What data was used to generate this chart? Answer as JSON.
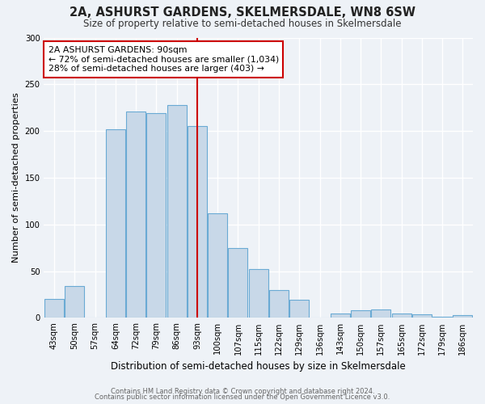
{
  "title": "2A, ASHURST GARDENS, SKELMERSDALE, WN8 6SW",
  "subtitle": "Size of property relative to semi-detached houses in Skelmersdale",
  "xlabel": "Distribution of semi-detached houses by size in Skelmersdale",
  "ylabel": "Number of semi-detached properties",
  "bin_labels": [
    "43sqm",
    "50sqm",
    "57sqm",
    "64sqm",
    "72sqm",
    "79sqm",
    "86sqm",
    "93sqm",
    "100sqm",
    "107sqm",
    "115sqm",
    "122sqm",
    "129sqm",
    "136sqm",
    "143sqm",
    "150sqm",
    "157sqm",
    "165sqm",
    "172sqm",
    "179sqm",
    "186sqm"
  ],
  "bar_values": [
    20,
    34,
    0,
    202,
    221,
    219,
    228,
    205,
    112,
    75,
    52,
    30,
    19,
    0,
    5,
    8,
    9,
    5,
    4,
    1,
    3
  ],
  "bar_color": "#c8d8e8",
  "bar_edge_color": "#6aaad4",
  "vline_x_index": 7,
  "vline_color": "#cc0000",
  "annotation_title": "2A ASHURST GARDENS: 90sqm",
  "annotation_line1": "← 72% of semi-detached houses are smaller (1,034)",
  "annotation_line2": "28% of semi-detached houses are larger (403) →",
  "annotation_box_facecolor": "#ffffff",
  "annotation_box_edgecolor": "#cc0000",
  "ylim": [
    0,
    300
  ],
  "yticks": [
    0,
    50,
    100,
    150,
    200,
    250,
    300
  ],
  "footer1": "Contains HM Land Registry data © Crown copyright and database right 2024.",
  "footer2": "Contains public sector information licensed under the Open Government Licence v3.0.",
  "bg_color": "#eef2f7"
}
